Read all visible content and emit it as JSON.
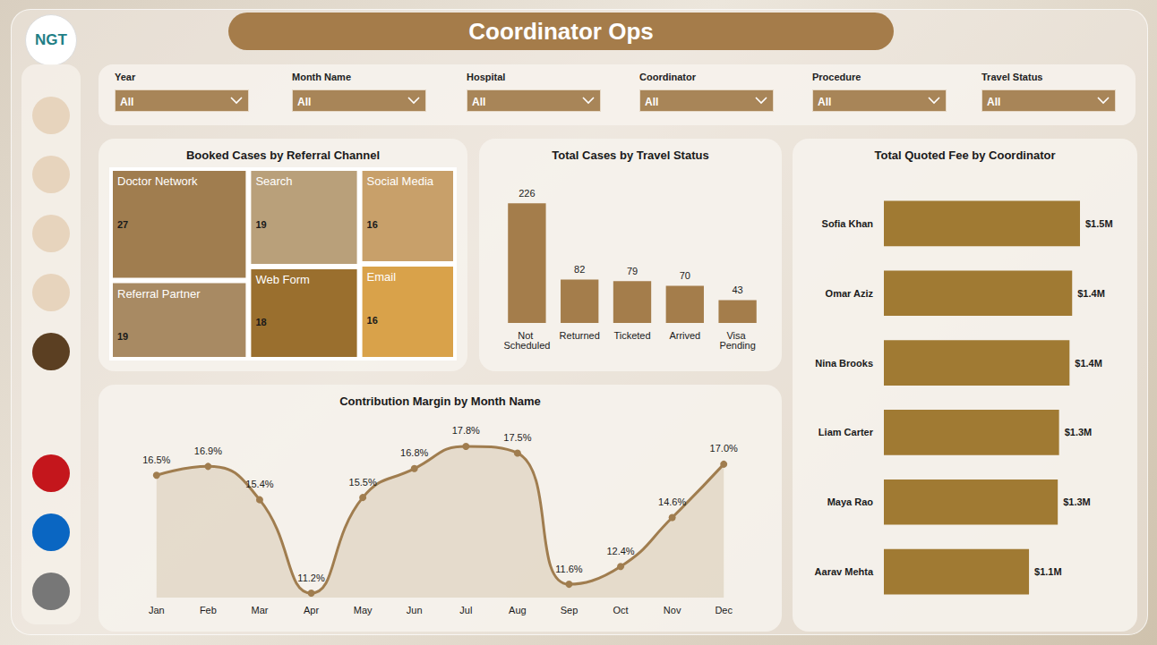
{
  "page": {
    "logo": "NGT",
    "title": "Coordinator Ops",
    "filters": [
      {
        "label": "Year",
        "value": "All"
      },
      {
        "label": "Month Name",
        "value": "All"
      },
      {
        "label": "Hospital",
        "value": "All"
      },
      {
        "label": "Coordinator",
        "value": "All"
      },
      {
        "label": "Procedure",
        "value": "All"
      },
      {
        "label": "Travel Status",
        "value": "All"
      }
    ]
  },
  "chart_data": [
    {
      "type": "treemap",
      "title": "Booked Cases by Referral Channel",
      "categories": [
        "Doctor Network",
        "Search",
        "Email",
        "Referral Partner",
        "Web Form",
        "Social Media"
      ],
      "values": [
        27,
        19,
        16,
        19,
        18,
        16
      ],
      "colors": [
        "#a07d4f",
        "#b9a07a",
        "#d9a24a",
        "#a88a63",
        "#9a6f2e",
        "#c8a06a"
      ],
      "data_labels": true
    },
    {
      "type": "bar",
      "title": "Total Cases by Travel Status",
      "categories": [
        "Not Scheduled",
        "Returned",
        "Ticketed",
        "Arrived",
        "Visa Pending"
      ],
      "values": [
        226,
        82,
        79,
        70,
        43
      ],
      "color": "#a47d4b",
      "data_labels": true,
      "tick_labels": "x",
      "grid": false
    },
    {
      "type": "line",
      "title": "Contribution Margin by Month Name",
      "categories": [
        "Jan",
        "Feb",
        "Mar",
        "Apr",
        "May",
        "Jun",
        "Jul",
        "Aug",
        "Sep",
        "Oct",
        "Nov",
        "Dec"
      ],
      "values": [
        16.5,
        16.9,
        15.4,
        11.2,
        15.5,
        16.8,
        17.8,
        17.5,
        11.6,
        12.4,
        14.6,
        17.0
      ],
      "value_labels": [
        "16.5%",
        "16.9%",
        "15.4%",
        "11.2%",
        "15.5%",
        "16.8%",
        "17.8%",
        "17.5%",
        "11.6%",
        "12.4%",
        "14.6%",
        "17.0%"
      ],
      "color": "#a07d4f",
      "marker": "circle",
      "line_style": "smooth",
      "data_labels": true,
      "tick_labels": "x",
      "grid": false
    },
    {
      "type": "bar",
      "orientation": "horizontal",
      "title": "Total Quoted Fee by Coordinator",
      "categories": [
        "Sofia Khan",
        "Omar Aziz",
        "Nina Brooks",
        "Liam Carter",
        "Maya Rao",
        "Aarav Mehta"
      ],
      "values": [
        1500000,
        1440000,
        1420000,
        1340000,
        1330000,
        1110000
      ],
      "value_labels": [
        "$1.5M",
        "$1.4M",
        "$1.4M",
        "$1.3M",
        "$1.3M",
        "$1.1M"
      ],
      "color": "#a07a33",
      "data_labels": true,
      "tick_labels": "y",
      "grid": false
    }
  ]
}
